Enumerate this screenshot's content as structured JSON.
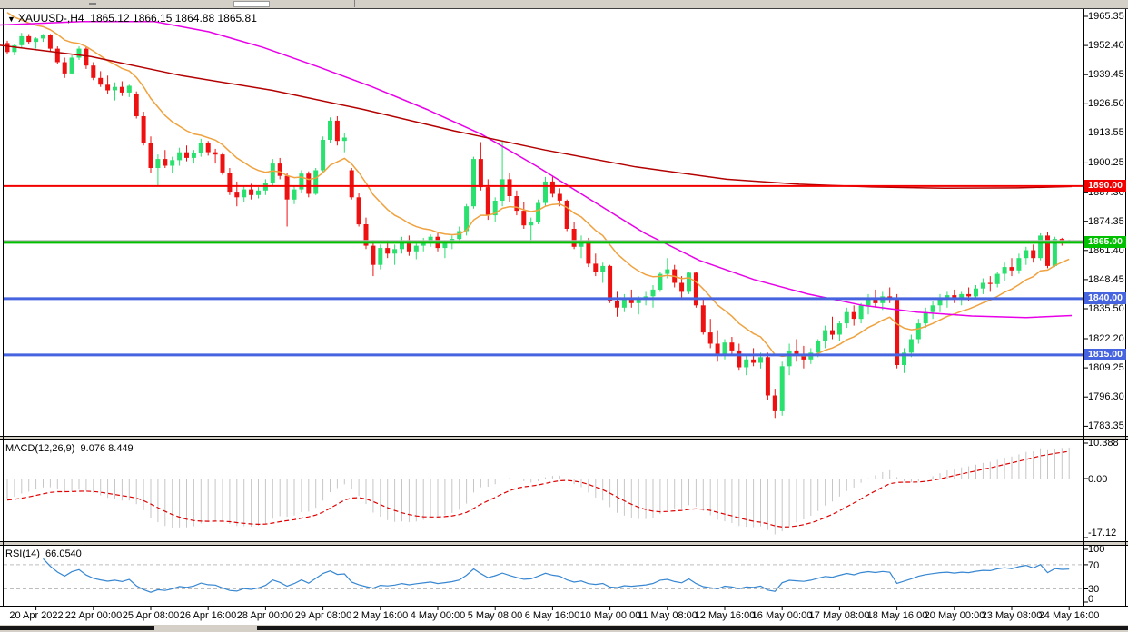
{
  "window": {
    "symbol_timeframe": "XAUUSD-,H4",
    "ohlc_open": "1865.12",
    "ohlc_high": "1866.15",
    "ohlc_low": "1864.88",
    "ohlc_close": "1865.81"
  },
  "colors": {
    "bull": "#2ae06e",
    "bear": "#ee1111",
    "ma_orange": "#efa23f",
    "ma_magenta": "#e800e8",
    "ma_dark_red": "#b40000",
    "hline_red": "#f20000",
    "hline_green": "#00c000",
    "hline_blue": "#4663e0",
    "bid_silver": "#b8b8b8",
    "macd_hist": "#c6c6c6",
    "macd_signal": "#e00000",
    "rsi_line": "#3787d2",
    "rsi_levels": "#bdbdbd",
    "axis_text": "#000000",
    "panel_bg": "#ffffff",
    "chrome": "#d4d0c8"
  },
  "price_axis": {
    "labels": [
      {
        "text": "1965.35",
        "price": 1965.35
      },
      {
        "text": "1952.40",
        "price": 1952.4
      },
      {
        "text": "1939.45",
        "price": 1939.45
      },
      {
        "text": "1926.50",
        "price": 1926.5
      },
      {
        "text": "1913.55",
        "price": 1913.55
      },
      {
        "text": "1900.25",
        "price": 1900.25
      },
      {
        "text": "1887.30",
        "price": 1887.3
      },
      {
        "text": "1874.35",
        "price": 1874.35
      },
      {
        "text": "1861.40",
        "price": 1861.4
      },
      {
        "text": "1848.45",
        "price": 1848.45
      },
      {
        "text": "1835.50",
        "price": 1835.5
      },
      {
        "text": "1822.20",
        "price": 1822.2
      },
      {
        "text": "1809.25",
        "price": 1809.25
      },
      {
        "text": "1796.30",
        "price": 1796.3
      },
      {
        "text": "1783.35",
        "price": 1783.35
      }
    ]
  },
  "hlines": [
    {
      "price": 1890.0,
      "label": "1890.00",
      "color": "#f20000",
      "width": 2
    },
    {
      "price": 1865.0,
      "label": "1865.00",
      "color": "#00c000",
      "width": 3
    },
    {
      "price": 1840.0,
      "label": "1840.00",
      "color": "#4663e0",
      "width": 3
    },
    {
      "price": 1815.0,
      "label": "1815.00",
      "color": "#4663e0",
      "width": 3
    }
  ],
  "bid_line": {
    "price": 1865.81
  },
  "time_axis": {
    "labels": [
      "20 Apr 2022",
      "22 Apr 00:00",
      "25 Apr 08:00",
      "26 Apr 16:00",
      "28 Apr 00:00",
      "29 Apr 08:00",
      "2 May 16:00",
      "4 May 00:00",
      "5 May 08:00",
      "6 May 16:00",
      "10 May 00:00",
      "11 May 08:00",
      "12 May 16:00",
      "16 May 00:00",
      "17 May 08:00",
      "18 May 16:00",
      "20 May 00:00",
      "23 May 08:00",
      "24 May 16:00"
    ]
  },
  "macd": {
    "name": "MACD(12,26,9)",
    "value": "9.076",
    "signal_value": "8.449",
    "axis": [
      {
        "text": "10.388",
        "v": 10.388
      },
      {
        "text": "0.00",
        "v": 0.0
      },
      {
        "text": "-17.12",
        "v": -17.12
      }
    ],
    "fast": 12,
    "slow": 26,
    "signal": 9,
    "ema_fast_seed": 1950,
    "ema_slow_seed": 1956
  },
  "rsi": {
    "name": "RSI(14)",
    "value": "66.0540",
    "period": 14,
    "axis": [
      {
        "text": "100",
        "v": 100
      },
      {
        "text": "70",
        "v": 70
      },
      {
        "text": "30",
        "v": 30
      },
      {
        "text": "0",
        "v": 0
      }
    ],
    "levels": [
      70,
      30
    ]
  },
  "chart_data": {
    "type": "candlestick",
    "symbol": "XAUUSD",
    "timeframe": "H4",
    "x_range": [
      "20 Apr 2022",
      "24 May 2022 16:00"
    ],
    "y_range": [
      1783.35,
      1965.35
    ],
    "current_bar": {
      "open": 1865.12,
      "high": 1866.15,
      "low": 1864.88,
      "close": 1865.81
    },
    "horizontal_levels": [
      1890.0,
      1865.0,
      1840.0,
      1815.0
    ],
    "candles": [
      [
        1953.5,
        1954.5,
        1948.5,
        1949.5
      ],
      [
        1949.5,
        1953.0,
        1948.0,
        1952.5
      ],
      [
        1952.5,
        1958.0,
        1951.5,
        1956.5
      ],
      [
        1956.5,
        1957.5,
        1953.0,
        1954.0
      ],
      [
        1954.0,
        1956.0,
        1951.0,
        1955.5
      ],
      [
        1955.5,
        1957.5,
        1954.0,
        1957.0
      ],
      [
        1957.0,
        1957.5,
        1950.0,
        1951.0
      ],
      [
        1951.0,
        1952.0,
        1944.0,
        1945.0
      ],
      [
        1945.0,
        1947.0,
        1938.0,
        1940.0
      ],
      [
        1940.0,
        1948.0,
        1939.5,
        1947.0
      ],
      [
        1947.0,
        1952.0,
        1946.0,
        1951.0
      ],
      [
        1951.0,
        1952.0,
        1942.0,
        1943.5
      ],
      [
        1943.5,
        1945.0,
        1937.0,
        1938.0
      ],
      [
        1938.0,
        1941.0,
        1934.0,
        1935.0
      ],
      [
        1935.0,
        1939.0,
        1931.0,
        1932.5
      ],
      [
        1932.5,
        1936.0,
        1928.0,
        1934.0
      ],
      [
        1934.0,
        1936.5,
        1930.0,
        1931.5
      ],
      [
        1931.5,
        1935.0,
        1929.5,
        1934.5
      ],
      [
        1931.0,
        1932.0,
        1920.0,
        1921.0
      ],
      [
        1921.0,
        1923.0,
        1908.0,
        1909.0
      ],
      [
        1909.0,
        1912.0,
        1896.0,
        1898.0
      ],
      [
        1898.0,
        1904.0,
        1890.0,
        1902.0
      ],
      [
        1902.0,
        1906.0,
        1898.0,
        1899.0
      ],
      [
        1899.0,
        1903.0,
        1896.0,
        1901.5
      ],
      [
        1901.5,
        1907.0,
        1899.0,
        1905.0
      ],
      [
        1905.0,
        1908.0,
        1901.0,
        1902.5
      ],
      [
        1902.5,
        1906.0,
        1900.0,
        1904.5
      ],
      [
        1904.5,
        1911.0,
        1903.0,
        1909.0
      ],
      [
        1909.0,
        1910.0,
        1903.5,
        1905.0
      ],
      [
        1905.0,
        1906.5,
        1900.0,
        1904.0
      ],
      [
        1904.0,
        1905.0,
        1895.0,
        1896.0
      ],
      [
        1896.0,
        1898.0,
        1886.0,
        1887.5
      ],
      [
        1887.5,
        1892.0,
        1881.0,
        1885.0
      ],
      [
        1885.0,
        1890.0,
        1883.0,
        1888.5
      ],
      [
        1888.5,
        1891.0,
        1884.0,
        1886.0
      ],
      [
        1886.0,
        1889.5,
        1884.5,
        1888.0
      ],
      [
        1888.0,
        1893.0,
        1886.0,
        1891.5
      ],
      [
        1891.5,
        1902.0,
        1890.0,
        1900.0
      ],
      [
        1900.0,
        1902.5,
        1893.0,
        1894.5
      ],
      [
        1894.5,
        1896.0,
        1872.0,
        1884.0
      ],
      [
        1884.0,
        1890.0,
        1882.0,
        1888.5
      ],
      [
        1888.5,
        1897.0,
        1887.0,
        1895.5
      ],
      [
        1895.5,
        1896.5,
        1885.0,
        1886.5
      ],
      [
        1886.5,
        1898.0,
        1886.0,
        1897.0
      ],
      [
        1897.0,
        1912.0,
        1896.0,
        1910.5
      ],
      [
        1910.5,
        1920.5,
        1909.0,
        1919.0
      ],
      [
        1919.0,
        1921.0,
        1908.0,
        1910.0
      ],
      [
        1910.0,
        1913.5,
        1905.0,
        1911.5
      ],
      [
        1897.0,
        1898.0,
        1884.0,
        1885.0
      ],
      [
        1885.0,
        1887.0,
        1872.0,
        1873.0
      ],
      [
        1873.0,
        1876.0,
        1862.0,
        1863.5
      ],
      [
        1863.5,
        1866.0,
        1850.0,
        1855.0
      ],
      [
        1855.0,
        1864.0,
        1853.0,
        1862.5
      ],
      [
        1862.5,
        1866.0,
        1858.0,
        1860.0
      ],
      [
        1860.0,
        1864.0,
        1855.0,
        1862.0
      ],
      [
        1862.0,
        1867.5,
        1860.0,
        1866.0
      ],
      [
        1866.0,
        1868.0,
        1859.0,
        1861.0
      ],
      [
        1861.0,
        1865.0,
        1857.5,
        1863.5
      ],
      [
        1863.5,
        1867.0,
        1861.0,
        1865.5
      ],
      [
        1865.5,
        1868.5,
        1863.0,
        1867.5
      ],
      [
        1867.5,
        1869.0,
        1861.0,
        1862.5
      ],
      [
        1862.5,
        1866.0,
        1858.0,
        1864.5
      ],
      [
        1864.5,
        1868.0,
        1862.0,
        1866.5
      ],
      [
        1866.5,
        1872.0,
        1865.0,
        1870.0
      ],
      [
        1870.0,
        1882.0,
        1868.0,
        1881.0
      ],
      [
        1881.0,
        1903.0,
        1880.0,
        1902.0
      ],
      [
        1902.0,
        1909.5,
        1888.0,
        1889.5
      ],
      [
        1889.5,
        1893.0,
        1875.0,
        1877.0
      ],
      [
        1877.0,
        1885.0,
        1874.0,
        1883.5
      ],
      [
        1883.5,
        1910.0,
        1881.0,
        1893.0
      ],
      [
        1893.0,
        1896.0,
        1883.0,
        1885.5
      ],
      [
        1885.5,
        1888.0,
        1877.0,
        1879.0
      ],
      [
        1879.0,
        1883.0,
        1871.0,
        1872.5
      ],
      [
        1872.5,
        1876.0,
        1866.0,
        1874.0
      ],
      [
        1874.0,
        1884.0,
        1873.0,
        1882.5
      ],
      [
        1882.5,
        1894.0,
        1881.0,
        1892.0
      ],
      [
        1892.0,
        1894.5,
        1885.0,
        1886.5
      ],
      [
        1886.5,
        1889.0,
        1881.0,
        1883.5
      ],
      [
        1883.5,
        1884.0,
        1870.0,
        1871.0
      ],
      [
        1871.0,
        1874.0,
        1862.0,
        1863.0
      ],
      [
        1863.0,
        1868.0,
        1858.0,
        1866.0
      ],
      [
        1866.0,
        1867.0,
        1854.0,
        1855.5
      ],
      [
        1855.5,
        1860.0,
        1850.0,
        1852.0
      ],
      [
        1852.0,
        1856.0,
        1847.0,
        1854.5
      ],
      [
        1854.5,
        1855.0,
        1838.0,
        1839.0
      ],
      [
        1839.0,
        1843.0,
        1832.0,
        1836.0
      ],
      [
        1836.0,
        1842.0,
        1834.0,
        1840.5
      ],
      [
        1840.5,
        1844.0,
        1836.0,
        1838.0
      ],
      [
        1838.0,
        1841.0,
        1833.0,
        1839.5
      ],
      [
        1839.5,
        1843.0,
        1837.0,
        1841.0
      ],
      [
        1841.0,
        1846.0,
        1836.0,
        1844.0
      ],
      [
        1844.0,
        1852.0,
        1843.0,
        1851.0
      ],
      [
        1851.0,
        1858.0,
        1849.0,
        1853.0
      ],
      [
        1853.0,
        1855.0,
        1845.0,
        1847.0
      ],
      [
        1847.0,
        1850.0,
        1840.0,
        1843.0
      ],
      [
        1843.0,
        1852.0,
        1842.0,
        1851.5
      ],
      [
        1851.5,
        1852.0,
        1836.0,
        1837.0
      ],
      [
        1837.0,
        1840.0,
        1824.0,
        1825.0
      ],
      [
        1825.0,
        1831.0,
        1818.0,
        1820.0
      ],
      [
        1820.0,
        1826.0,
        1812.0,
        1815.0
      ],
      [
        1815.0,
        1822.0,
        1813.0,
        1820.5
      ],
      [
        1820.5,
        1823.0,
        1815.0,
        1817.0
      ],
      [
        1817.0,
        1820.0,
        1808.0,
        1809.5
      ],
      [
        1809.5,
        1815.0,
        1806.0,
        1813.0
      ],
      [
        1813.0,
        1818.0,
        1810.0,
        1811.5
      ],
      [
        1811.5,
        1816.0,
        1809.0,
        1814.0
      ],
      [
        1814.0,
        1816.0,
        1795.0,
        1797.0
      ],
      [
        1797.0,
        1800.0,
        1787.0,
        1790.0
      ],
      [
        1790.0,
        1812.0,
        1788.0,
        1810.0
      ],
      [
        1810.0,
        1820.0,
        1806.0,
        1817.0
      ],
      [
        1817.0,
        1822.0,
        1812.0,
        1815.0
      ],
      [
        1815.0,
        1819.0,
        1809.0,
        1813.0
      ],
      [
        1813.0,
        1818.0,
        1811.0,
        1816.0
      ],
      [
        1816.0,
        1822.0,
        1814.0,
        1821.0
      ],
      [
        1821.0,
        1828.0,
        1818.0,
        1826.0
      ],
      [
        1826.0,
        1832.0,
        1822.0,
        1824.0
      ],
      [
        1824.0,
        1830.0,
        1821.0,
        1829.0
      ],
      [
        1829.0,
        1836.0,
        1827.0,
        1834.0
      ],
      [
        1834.0,
        1837.0,
        1828.0,
        1831.0
      ],
      [
        1831.0,
        1838.0,
        1829.0,
        1837.0
      ],
      [
        1837.0,
        1842.0,
        1833.0,
        1840.0
      ],
      [
        1840.0,
        1844.0,
        1836.0,
        1838.0
      ],
      [
        1838.0,
        1843.0,
        1835.0,
        1841.0
      ],
      [
        1841.0,
        1845.0,
        1838.0,
        1839.5
      ],
      [
        1839.5,
        1842.0,
        1809.0,
        1810.5
      ],
      [
        1810.5,
        1818.0,
        1807.0,
        1816.0
      ],
      [
        1816.0,
        1824.0,
        1814.0,
        1822.0
      ],
      [
        1822.0,
        1831.0,
        1820.0,
        1829.0
      ],
      [
        1829.0,
        1836.0,
        1827.0,
        1834.0
      ],
      [
        1834.0,
        1839.0,
        1831.0,
        1837.0
      ],
      [
        1837.0,
        1842.0,
        1834.0,
        1840.0
      ],
      [
        1840.0,
        1843.0,
        1836.0,
        1841.5
      ],
      [
        1841.5,
        1844.0,
        1838.0,
        1839.5
      ],
      [
        1839.5,
        1843.0,
        1837.0,
        1842.0
      ],
      [
        1842.0,
        1845.0,
        1839.0,
        1841.0
      ],
      [
        1841.0,
        1846.0,
        1840.0,
        1844.5
      ],
      [
        1844.5,
        1849.0,
        1842.0,
        1847.0
      ],
      [
        1847.0,
        1850.0,
        1843.0,
        1846.5
      ],
      [
        1846.5,
        1852.0,
        1845.0,
        1851.0
      ],
      [
        1851.0,
        1856.0,
        1848.0,
        1854.0
      ],
      [
        1854.0,
        1858.0,
        1850.0,
        1852.5
      ],
      [
        1852.5,
        1860.0,
        1851.0,
        1858.0
      ],
      [
        1858.0,
        1863.0,
        1855.0,
        1861.5
      ],
      [
        1861.5,
        1864.0,
        1856.0,
        1858.0
      ],
      [
        1858.0,
        1869.0,
        1857.0,
        1868.0
      ],
      [
        1868.0,
        1869.5,
        1853.5,
        1854.5
      ],
      [
        1854.5,
        1867.5,
        1854.0,
        1866.5
      ],
      [
        1866.5,
        1867.0,
        1863.5,
        1865.1
      ],
      [
        1865.1,
        1866.2,
        1864.9,
        1865.8
      ]
    ],
    "moving_averages": {
      "orange_fast": {
        "type": "ema",
        "period": 13,
        "seed": 1970,
        "color": "#efa23f"
      },
      "magenta_mid": {
        "color": "#e800e8",
        "points": [
          [
            0,
            1961.5
          ],
          [
            90,
            1963
          ],
          [
            170,
            1963
          ],
          [
            230,
            1958.5
          ],
          [
            290,
            1951.5
          ],
          [
            350,
            1943
          ],
          [
            410,
            1934
          ],
          [
            470,
            1924
          ],
          [
            530,
            1913
          ],
          [
            590,
            1899
          ],
          [
            650,
            1884
          ],
          [
            710,
            1869
          ],
          [
            770,
            1857
          ],
          [
            830,
            1848.5
          ],
          [
            890,
            1842
          ],
          [
            950,
            1837
          ],
          [
            1010,
            1834
          ],
          [
            1070,
            1832.3
          ],
          [
            1130,
            1831.6
          ],
          [
            1180,
            1832.5
          ]
        ]
      },
      "dark_red_slow": {
        "color": "#b40000",
        "points": [
          [
            0,
            1952.5
          ],
          [
            100,
            1947.5
          ],
          [
            200,
            1939
          ],
          [
            300,
            1932.5
          ],
          [
            400,
            1924
          ],
          [
            500,
            1914.5
          ],
          [
            600,
            1906
          ],
          [
            700,
            1898.5
          ],
          [
            800,
            1893
          ],
          [
            880,
            1890.8
          ],
          [
            960,
            1889.6
          ],
          [
            1040,
            1889
          ],
          [
            1120,
            1889.2
          ],
          [
            1180,
            1889.8
          ]
        ]
      }
    }
  }
}
